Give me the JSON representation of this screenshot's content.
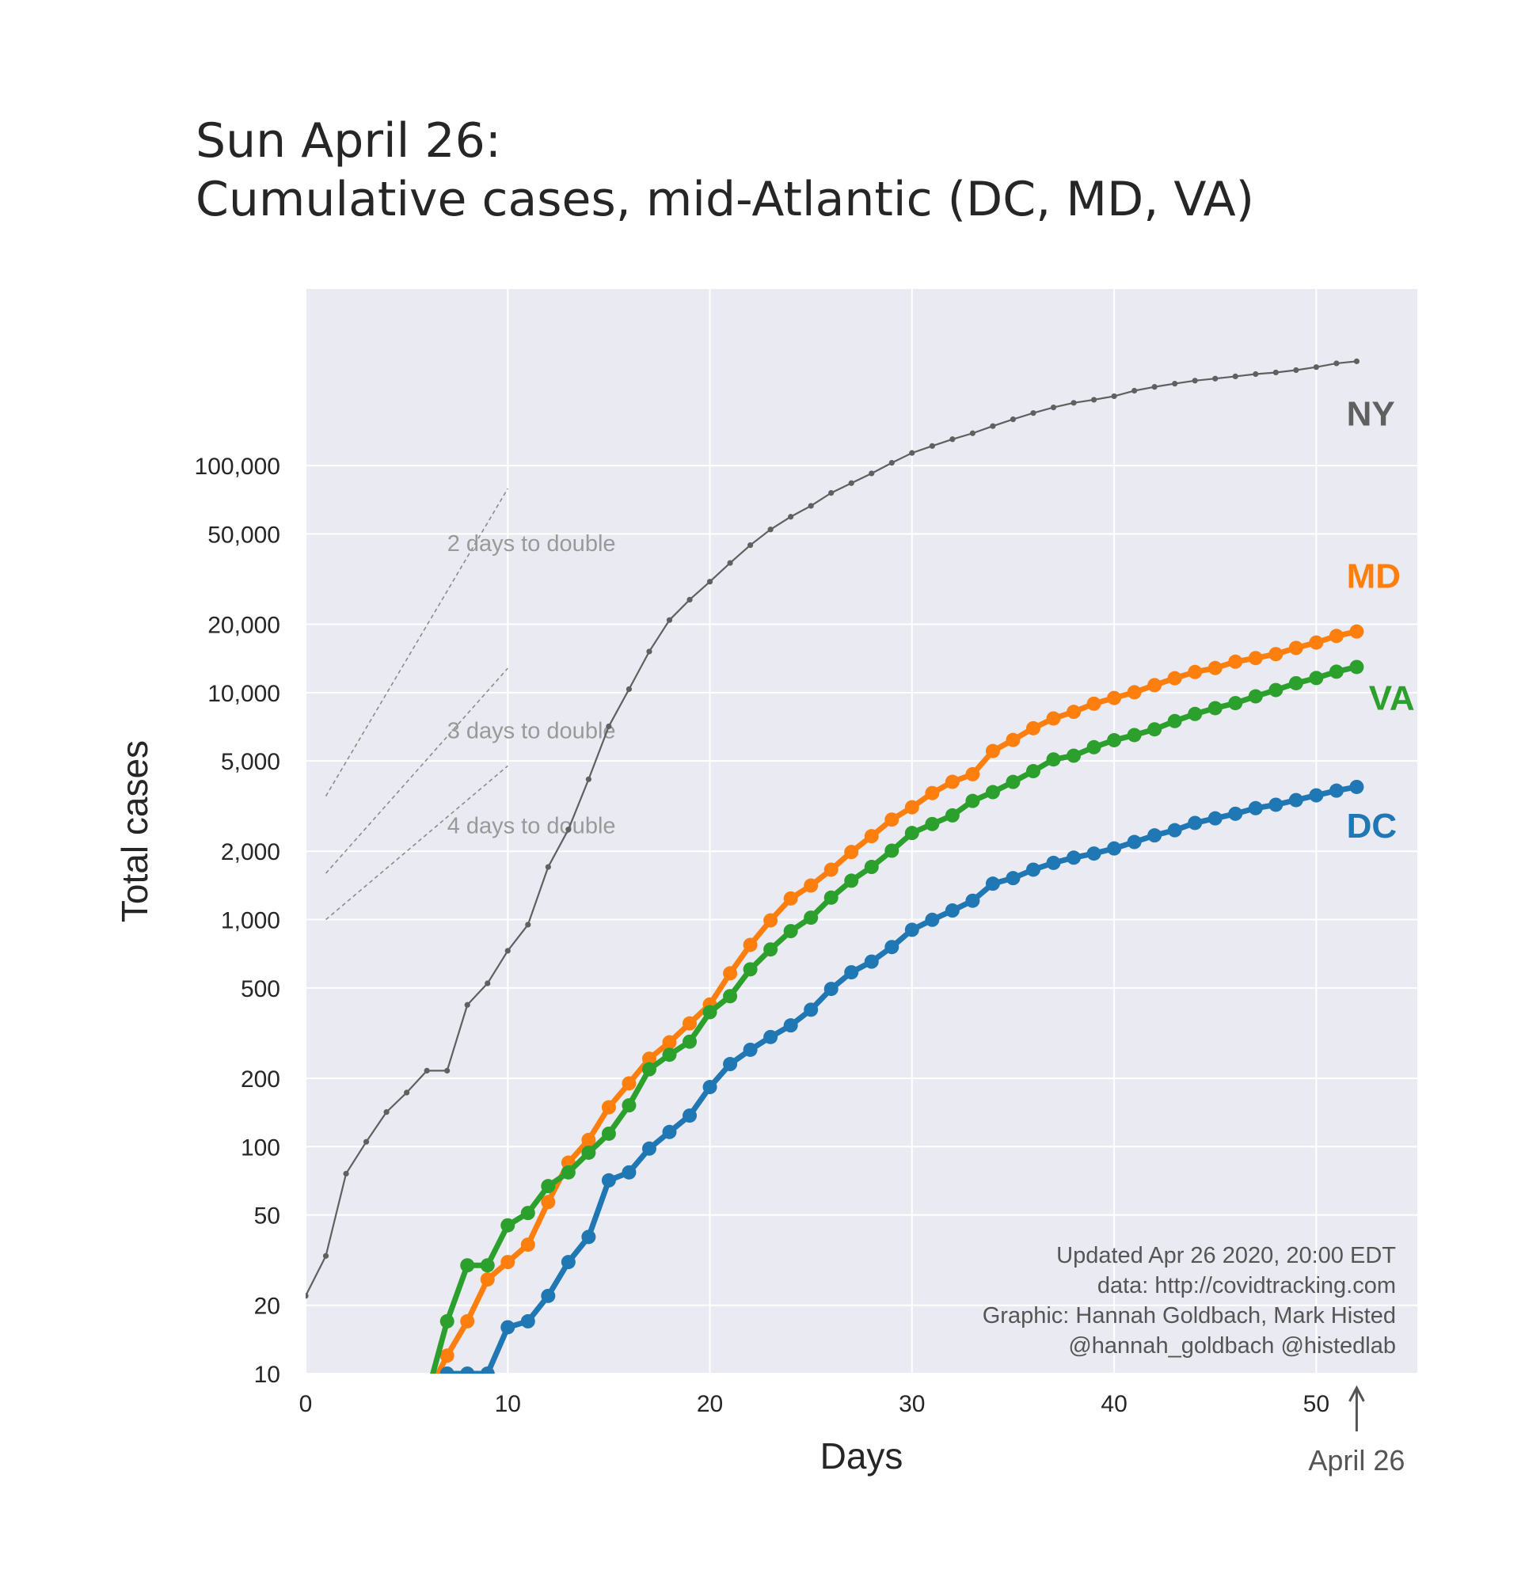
{
  "chart_data": {
    "type": "line",
    "title_line1": "Sun April 26:",
    "title_line2": "Cumulative cases, mid-Atlantic (DC, MD, VA)",
    "xlabel": "Days",
    "ylabel": "Total cases",
    "xlim": [
      0,
      55
    ],
    "ylim": [
      10,
      600000
    ],
    "yscale": "log",
    "grid": true,
    "x_ticks": [
      0,
      10,
      20,
      30,
      40,
      50
    ],
    "y_ticks": [
      {
        "value": 10,
        "label": "10"
      },
      {
        "value": 20,
        "label": "20"
      },
      {
        "value": 50,
        "label": "50"
      },
      {
        "value": 100,
        "label": "100"
      },
      {
        "value": 200,
        "label": "200"
      },
      {
        "value": 500,
        "label": "500"
      },
      {
        "value": 1000,
        "label": "1,000"
      },
      {
        "value": 2000,
        "label": "2,000"
      },
      {
        "value": 5000,
        "label": "5,000"
      },
      {
        "value": 10000,
        "label": "10,000"
      },
      {
        "value": 20000,
        "label": "20,000"
      },
      {
        "value": 50000,
        "label": "50,000"
      },
      {
        "value": 100000,
        "label": "100,000"
      }
    ],
    "series": [
      {
        "name": "NY",
        "color": "#606060",
        "style": "thin",
        "label_at": [
          51.5,
          150000
        ],
        "x": [
          0,
          1,
          2,
          3,
          4,
          5,
          6,
          7,
          8,
          9,
          10,
          11,
          12,
          13,
          14,
          15,
          16,
          17,
          18,
          19,
          20,
          21,
          22,
          23,
          24,
          25,
          26,
          27,
          28,
          29,
          30,
          31,
          32,
          33,
          34,
          35,
          36,
          37,
          38,
          39,
          40,
          41,
          42,
          43,
          44,
          45,
          46,
          47,
          48,
          49,
          50,
          51,
          52
        ],
        "y": [
          22,
          33,
          76,
          105,
          142,
          173,
          216,
          216,
          421,
          524,
          729,
          950,
          1706,
          2495,
          4152,
          7102,
          10356,
          15168,
          20875,
          25665,
          30811,
          37258,
          44635,
          52318,
          59513,
          66497,
          75795,
          83712,
          92381,
          102863,
          113704,
          122031,
          130689,
          138836,
          149316,
          159937,
          170512,
          180458,
          189033,
          195031,
          202208,
          213779,
          222284,
          229642,
          236732,
          241712,
          247215,
          253060,
          257216,
          263460,
          271590,
          282143,
          288045
        ]
      },
      {
        "name": "MD",
        "color": "#ff7f0e",
        "style": "thick",
        "label_at": [
          51.5,
          29000
        ],
        "x": [
          6,
          7,
          8,
          9,
          10,
          11,
          12,
          13,
          14,
          15,
          16,
          17,
          18,
          19,
          20,
          21,
          22,
          23,
          24,
          25,
          26,
          27,
          28,
          29,
          30,
          31,
          32,
          33,
          34,
          35,
          36,
          37,
          38,
          39,
          40,
          41,
          42,
          43,
          44,
          45,
          46,
          47,
          48,
          49,
          50,
          51,
          52
        ],
        "y": [
          8,
          12,
          17,
          26,
          31,
          37,
          57,
          85,
          107,
          149,
          190,
          244,
          288,
          349,
          423,
          580,
          774,
          992,
          1239,
          1413,
          1660,
          1985,
          2331,
          2758,
          3125,
          3609,
          4045,
          4371,
          5529,
          6185,
          6968,
          7694,
          8225,
          8936,
          9472,
          10032,
          10784,
          11572,
          12326,
          12830,
          13684,
          14193,
          14775,
          15737,
          16616,
          17766,
          18581
        ]
      },
      {
        "name": "VA",
        "color": "#2ca02c",
        "style": "thick",
        "label_at": [
          52.6,
          8400
        ],
        "x": [
          6,
          7,
          8,
          9,
          10,
          11,
          12,
          13,
          14,
          15,
          16,
          17,
          18,
          19,
          20,
          21,
          22,
          23,
          24,
          25,
          26,
          27,
          28,
          29,
          30,
          31,
          32,
          33,
          34,
          35,
          36,
          37,
          38,
          39,
          40,
          41,
          42,
          43,
          44,
          45,
          46,
          47,
          48,
          49,
          50,
          51,
          52
        ],
        "y": [
          8,
          17,
          30,
          30,
          45,
          51,
          67,
          77,
          94,
          114,
          152,
          219,
          254,
          290,
          391,
          460,
          604,
          739,
          890,
          1020,
          1250,
          1484,
          1706,
          2012,
          2407,
          2637,
          2878,
          3333,
          3645,
          4042,
          4509,
          5077,
          5274,
          5747,
          6171,
          6500,
          6889,
          7491,
          8053,
          8542,
          8990,
          9630,
          10266,
          10998,
          11594,
          12366,
          12970
        ]
      },
      {
        "name": "DC",
        "color": "#1f77b4",
        "style": "thick",
        "label_at": [
          51.5,
          2300
        ],
        "x": [
          6,
          7,
          8,
          9,
          10,
          11,
          12,
          13,
          14,
          15,
          16,
          17,
          18,
          19,
          20,
          21,
          22,
          23,
          24,
          25,
          26,
          27,
          28,
          29,
          30,
          31,
          32,
          33,
          34,
          35,
          36,
          37,
          38,
          39,
          40,
          41,
          42,
          43,
          44,
          45,
          46,
          47,
          48,
          49,
          50,
          51,
          52
        ],
        "y": [
          7,
          10,
          10,
          10,
          16,
          17,
          22,
          31,
          40,
          71,
          77,
          98,
          116,
          137,
          183,
          231,
          267,
          304,
          342,
          401,
          495,
          586,
          653,
          757,
          902,
          998,
          1097,
          1211,
          1440,
          1523,
          1660,
          1778,
          1875,
          1955,
          2058,
          2197,
          2350,
          2476,
          2666,
          2793,
          2927,
          3098,
          3206,
          3361,
          3528,
          3699,
          3841
        ]
      }
    ],
    "guides": [
      {
        "label": "2 days to double",
        "x0": 1,
        "y0": 3500,
        "doubling_days": 2,
        "label_at": [
          7,
          42000
        ]
      },
      {
        "label": "3 days to double",
        "x0": 1,
        "y0": 1600,
        "doubling_days": 3,
        "label_at": [
          7,
          6300
        ]
      },
      {
        "label": "4 days to double",
        "x0": 1,
        "y0": 1000,
        "doubling_days": 4,
        "label_at": [
          7,
          2400
        ]
      }
    ],
    "credits": [
      "Updated Apr 26 2020, 20:00 EDT",
      "data: http://covidtracking.com",
      "Graphic: Hannah Goldbach, Mark Histed",
      "@hannah_goldbach @histedlab"
    ],
    "marker": {
      "label": "April 26",
      "x": 52
    }
  }
}
